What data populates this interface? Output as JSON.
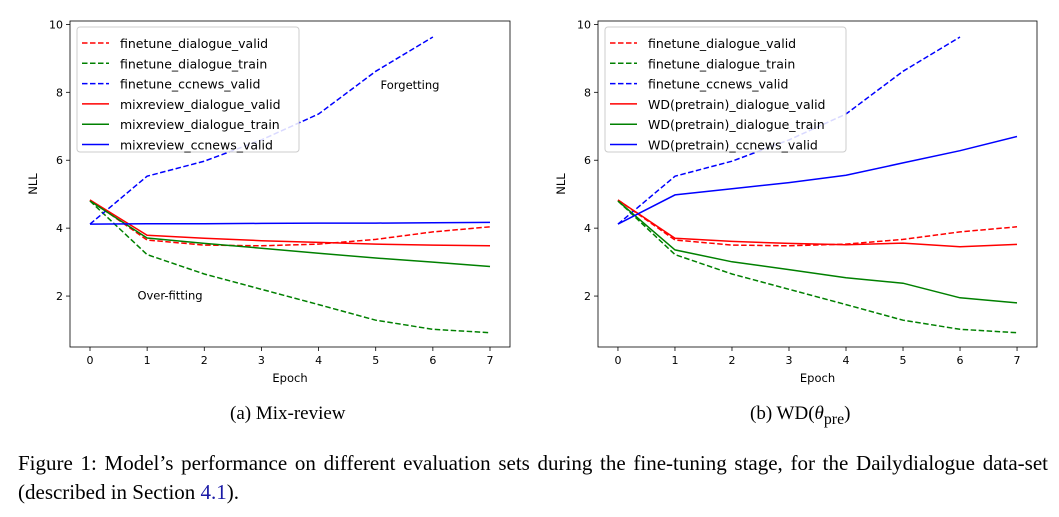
{
  "chart_data": [
    {
      "type": "line",
      "ylabel": "NLL",
      "xlabel": "Epoch",
      "x": [
        0,
        1,
        2,
        3,
        4,
        5,
        6,
        7
      ],
      "xlim": [
        -0.35,
        7.35
      ],
      "ylim": [
        0.5,
        10.1
      ],
      "xticks": [
        "0",
        "1",
        "2",
        "3",
        "4",
        "5",
        "6",
        "7"
      ],
      "yticks": [
        "2",
        "4",
        "6",
        "8",
        "10"
      ],
      "legend_position": "top-left",
      "grid": false,
      "annotations": [
        {
          "text": "Forgetting",
          "x": 5.6,
          "y": 8.1
        },
        {
          "text": "Over-fitting",
          "x": 1.4,
          "y": 1.9
        }
      ],
      "series": [
        {
          "name": "finetune_dialogue_valid",
          "color": "#ff0000",
          "dash": true,
          "values": [
            4.83,
            3.65,
            3.5,
            3.48,
            3.53,
            3.67,
            3.89,
            4.04
          ]
        },
        {
          "name": "finetune_dialogue_train",
          "color": "#008000",
          "dash": true,
          "values": [
            4.8,
            3.22,
            2.65,
            2.2,
            1.75,
            1.29,
            1.02,
            0.92
          ]
        },
        {
          "name": "finetune_ccnews_valid",
          "color": "#0000ff",
          "dash": true,
          "values": [
            4.12,
            5.53,
            5.97,
            6.6,
            7.36,
            8.62,
            9.63,
            null
          ]
        },
        {
          "name": "mixreview_dialogue_valid",
          "color": "#ff0000",
          "dash": false,
          "values": [
            4.83,
            3.79,
            3.7,
            3.63,
            3.58,
            3.53,
            3.5,
            3.48
          ]
        },
        {
          "name": "mixreview_dialogue_train",
          "color": "#008000",
          "dash": false,
          "values": [
            4.8,
            3.71,
            3.55,
            3.41,
            3.26,
            3.12,
            3.0,
            2.87
          ]
        },
        {
          "name": "mixreview_ccnews_valid",
          "color": "#0000ff",
          "dash": false,
          "values": [
            4.12,
            4.13,
            4.13,
            4.14,
            4.15,
            4.15,
            4.16,
            4.17
          ]
        }
      ]
    },
    {
      "type": "line",
      "ylabel": "NLL",
      "xlabel": "Epoch",
      "x": [
        0,
        1,
        2,
        3,
        4,
        5,
        6,
        7
      ],
      "xlim": [
        -0.35,
        7.35
      ],
      "ylim": [
        0.5,
        10.1
      ],
      "xticks": [
        "0",
        "1",
        "2",
        "3",
        "4",
        "5",
        "6",
        "7"
      ],
      "yticks": [
        "2",
        "4",
        "6",
        "8",
        "10"
      ],
      "legend_position": "top-left",
      "grid": false,
      "annotations": [],
      "series": [
        {
          "name": "finetune_dialogue_valid",
          "color": "#ff0000",
          "dash": true,
          "values": [
            4.83,
            3.65,
            3.5,
            3.48,
            3.53,
            3.67,
            3.89,
            4.04
          ]
        },
        {
          "name": "finetune_dialogue_train",
          "color": "#008000",
          "dash": true,
          "values": [
            4.8,
            3.22,
            2.65,
            2.2,
            1.75,
            1.29,
            1.02,
            0.92
          ]
        },
        {
          "name": "finetune_ccnews_valid",
          "color": "#0000ff",
          "dash": true,
          "values": [
            4.12,
            5.53,
            5.97,
            6.6,
            7.36,
            8.62,
            9.63,
            null
          ]
        },
        {
          "name": "WD(pretrain)_dialogue_valid",
          "color": "#ff0000",
          "dash": false,
          "values": [
            4.83,
            3.7,
            3.61,
            3.55,
            3.51,
            3.56,
            3.45,
            3.52
          ]
        },
        {
          "name": "WD(pretrain)_dialogue_train",
          "color": "#008000",
          "dash": false,
          "values": [
            4.8,
            3.36,
            3.01,
            2.78,
            2.54,
            2.38,
            1.95,
            1.8
          ]
        },
        {
          "name": "WD(pretrain)_ccnews_valid",
          "color": "#0000ff",
          "dash": false,
          "values": [
            4.12,
            4.98,
            5.16,
            5.34,
            5.56,
            5.92,
            6.28,
            6.7
          ]
        }
      ]
    }
  ],
  "subcaptions": {
    "a": "(a) Mix-review",
    "b_prefix": "(b) WD(",
    "b_theta": "θ",
    "b_sub": "pre",
    "b_suffix": ")"
  },
  "caption": {
    "text1": "Figure 1:  Model’s performance on different evaluation sets during the fine-tuning stage, for the Dailydialogue data-set (described in Section ",
    "ref": "4.1",
    "text2": ")."
  }
}
